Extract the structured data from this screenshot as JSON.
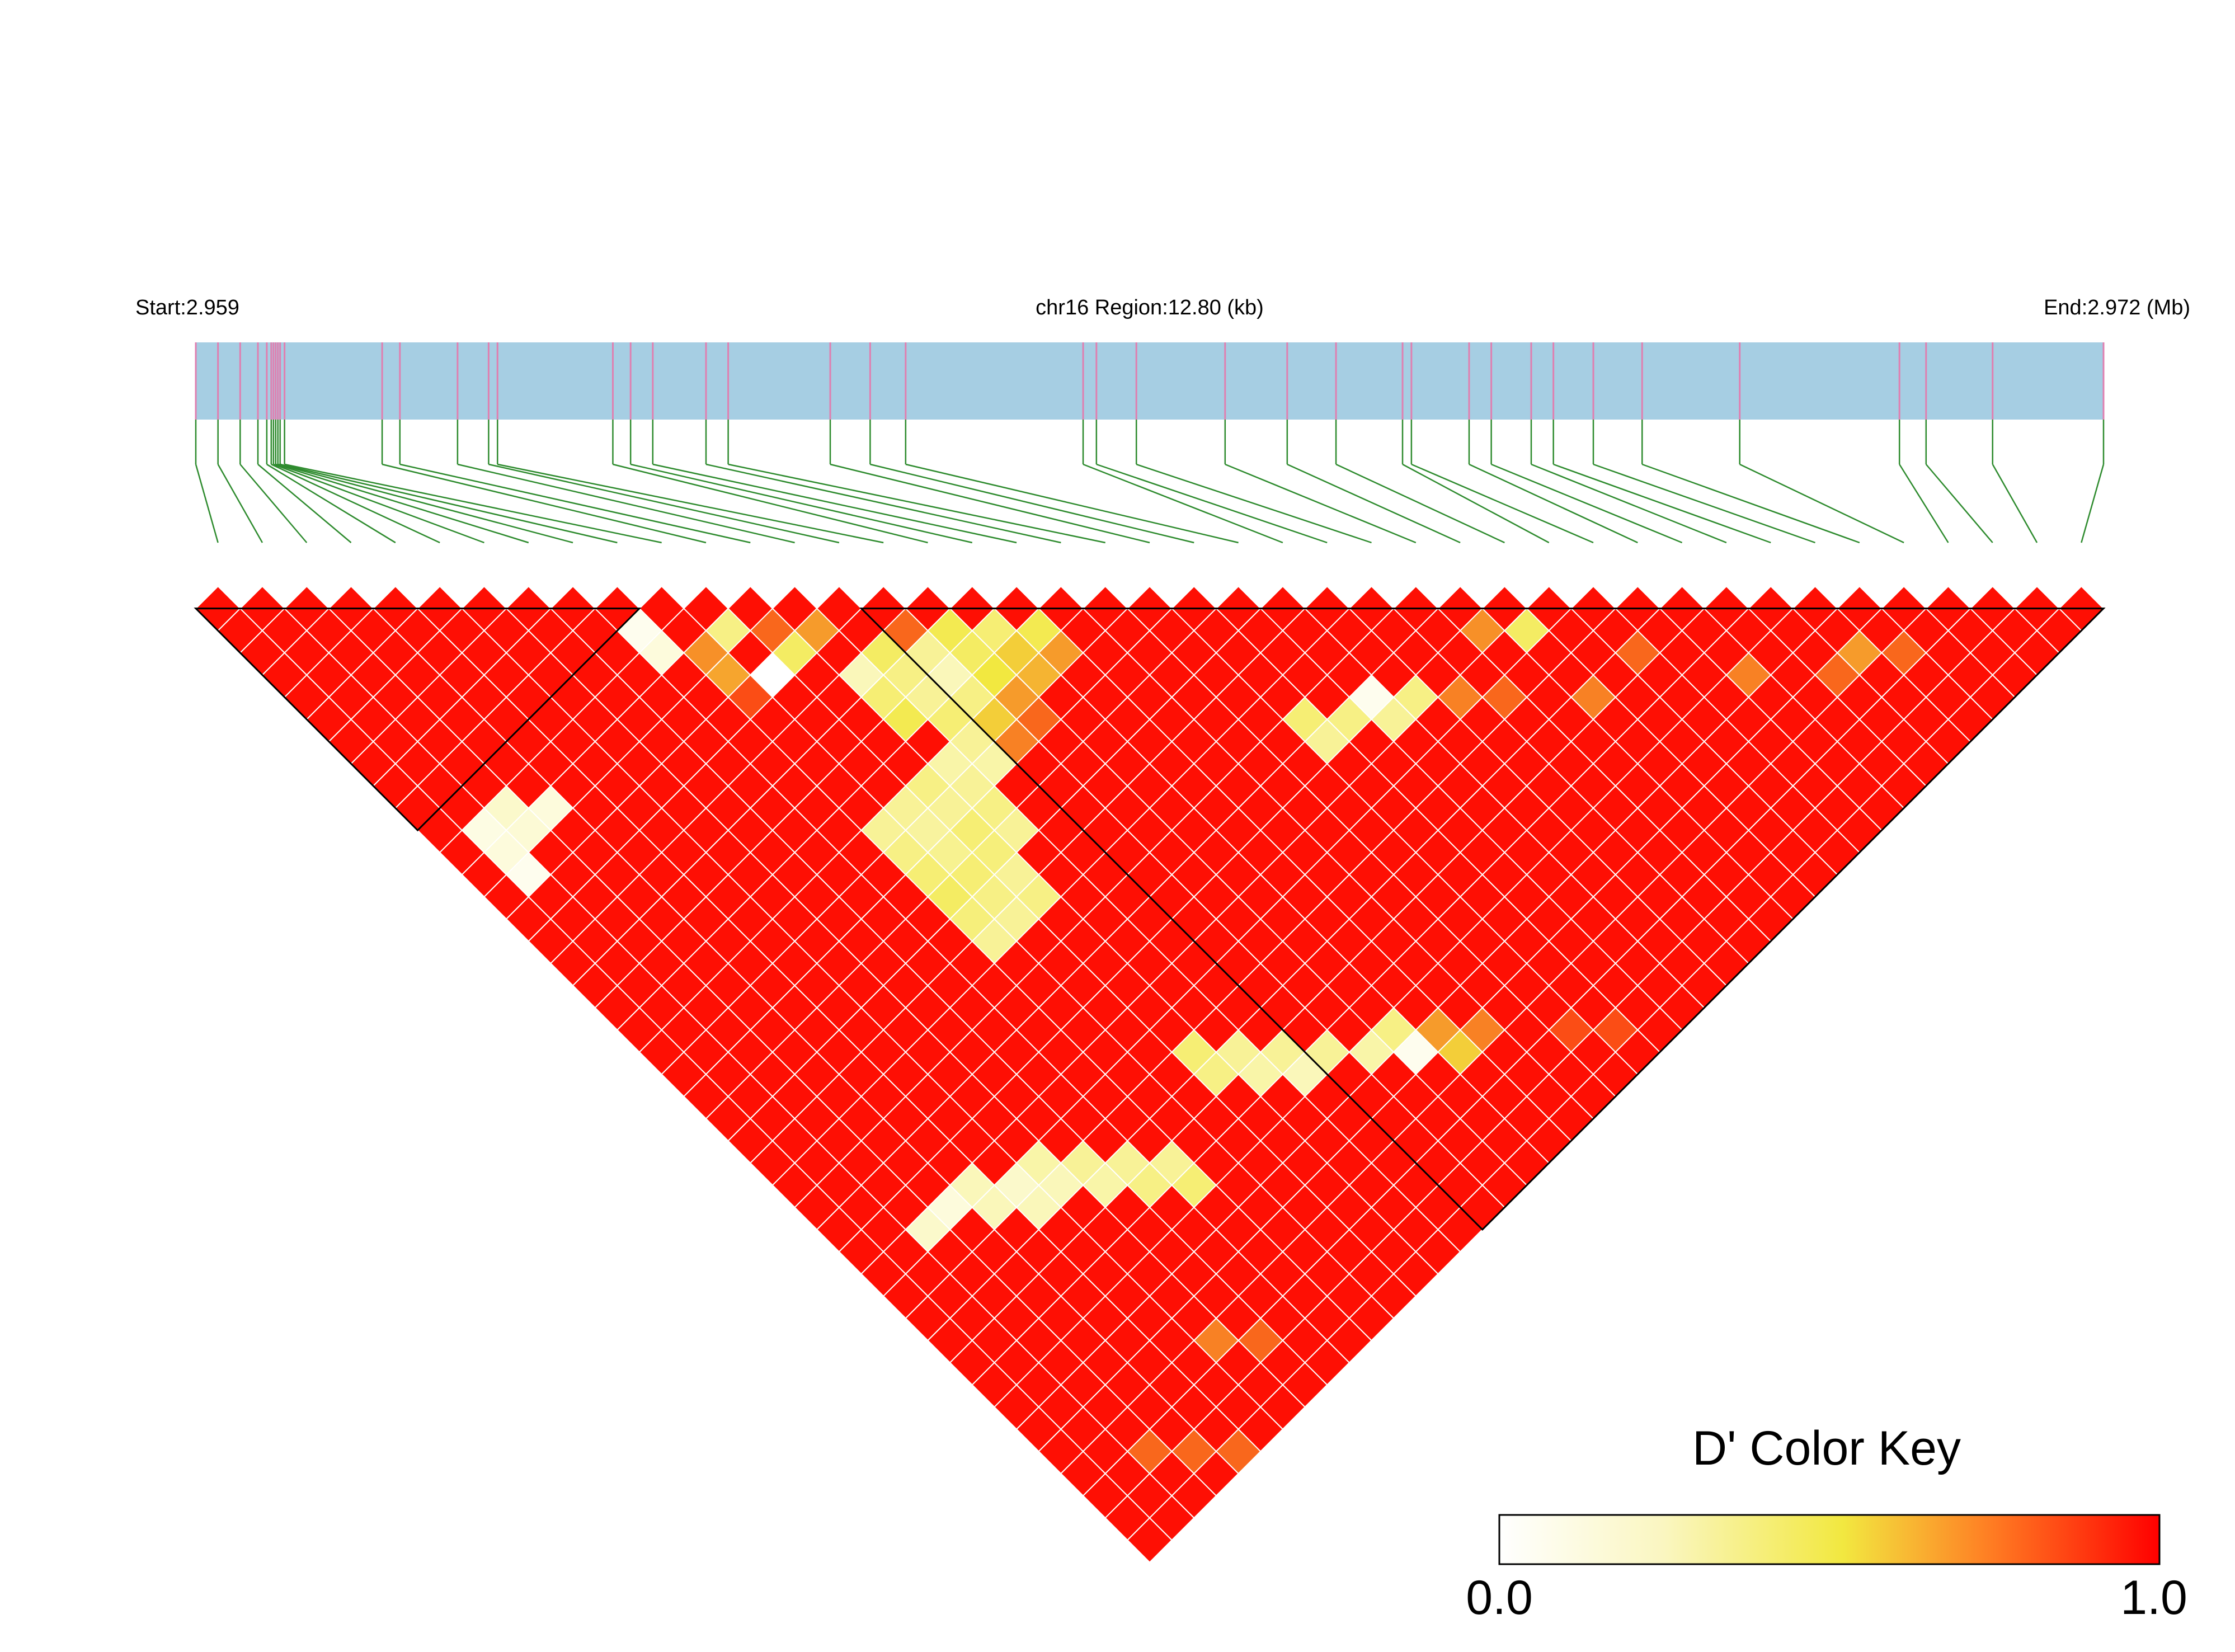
{
  "header": {
    "start_label": "Start:2.959",
    "region_label": "chr16 Region:12.80 (kb)",
    "end_label": "End:2.972 (Mb)"
  },
  "colors": {
    "track": "#a6cee3",
    "snp_tick": "#e07fb0",
    "connector": "#2e8b2e",
    "low": "#ffffff",
    "mid": "#f2e840",
    "high": "#ff0000",
    "block_border": "#000000"
  },
  "legend": {
    "title": "D' Color Key",
    "min_label": "0.0",
    "max_label": "1.0"
  },
  "chart_data": {
    "type": "heatmap",
    "chromosome": "chr16",
    "region_start_mb": 2.959,
    "region_end_mb": 2.972,
    "region_kb": 12.8,
    "n_snps": 43,
    "snp_track_positions": [
      0.0,
      0.5,
      1.0,
      1.4,
      1.6,
      1.7,
      1.75,
      1.8,
      1.85,
      1.9,
      2.0,
      4.2,
      4.6,
      5.9,
      6.6,
      6.8,
      9.4,
      9.8,
      10.3,
      11.5,
      12.0,
      14.3,
      15.2,
      16.0,
      20.0,
      20.3,
      21.2,
      23.2,
      24.6,
      25.7,
      27.2,
      27.4,
      28.7,
      29.2,
      30.1,
      30.6,
      31.5,
      32.6,
      34.8,
      38.4,
      39.0,
      40.5,
      43.0
    ],
    "blocks": [
      {
        "first_snp": 0,
        "last_snp": 9
      },
      {
        "first_snp": 15,
        "last_snp": 42
      }
    ],
    "value_scale": {
      "min": 0.0,
      "max": 1.0
    },
    "default_dprime": 0.97,
    "pair_values": [
      {
        "i": 1,
        "j": 11,
        "v": 0.08
      },
      {
        "i": 1,
        "j": 12,
        "v": 0.1
      },
      {
        "i": 1,
        "j": 13,
        "v": 0.05
      },
      {
        "i": 2,
        "j": 11,
        "v": 0.15
      },
      {
        "i": 2,
        "j": 12,
        "v": 0.12
      },
      {
        "i": 3,
        "j": 12,
        "v": 0.1
      },
      {
        "i": 9,
        "j": 10,
        "v": 0.05
      },
      {
        "i": 9,
        "j": 11,
        "v": 0.1
      },
      {
        "i": 10,
        "j": 12,
        "v": 0.72
      },
      {
        "i": 10,
        "j": 13,
        "v": 0.68
      },
      {
        "i": 10,
        "j": 14,
        "v": 0.85
      },
      {
        "i": 10,
        "j": 20,
        "v": 0.3
      },
      {
        "i": 10,
        "j": 21,
        "v": 0.35
      },
      {
        "i": 10,
        "j": 22,
        "v": 0.4
      },
      {
        "i": 10,
        "j": 23,
        "v": 0.45
      },
      {
        "i": 10,
        "j": 24,
        "v": 0.38
      },
      {
        "i": 10,
        "j": 25,
        "v": 0.3
      },
      {
        "i": 11,
        "j": 12,
        "v": 0.35
      },
      {
        "i": 11,
        "j": 14,
        "v": 0.0
      },
      {
        "i": 11,
        "j": 20,
        "v": 0.3
      },
      {
        "i": 11,
        "j": 21,
        "v": 0.28
      },
      {
        "i": 11,
        "j": 22,
        "v": 0.32
      },
      {
        "i": 11,
        "j": 23,
        "v": 0.4
      },
      {
        "i": 11,
        "j": 24,
        "v": 0.35
      },
      {
        "i": 11,
        "j": 25,
        "v": 0.3
      },
      {
        "i": 12,
        "j": 13,
        "v": 0.8
      },
      {
        "i": 12,
        "j": 14,
        "v": 0.45
      },
      {
        "i": 12,
        "j": 20,
        "v": 0.35
      },
      {
        "i": 12,
        "j": 21,
        "v": 0.3
      },
      {
        "i": 12,
        "j": 22,
        "v": 0.4
      },
      {
        "i": 12,
        "j": 23,
        "v": 0.38
      },
      {
        "i": 12,
        "j": 24,
        "v": 0.3
      },
      {
        "i": 12,
        "j": 25,
        "v": 0.35
      },
      {
        "i": 13,
        "j": 14,
        "v": 0.7
      },
      {
        "i": 13,
        "j": 16,
        "v": 0.2
      },
      {
        "i": 13,
        "j": 17,
        "v": 0.4
      },
      {
        "i": 13,
        "j": 18,
        "v": 0.5
      },
      {
        "i": 13,
        "j": 20,
        "v": 0.25
      },
      {
        "i": 13,
        "j": 21,
        "v": 0.3
      },
      {
        "i": 13,
        "j": 22,
        "v": 0.35
      },
      {
        "i": 13,
        "j": 23,
        "v": 0.3
      },
      {
        "i": 14,
        "j": 16,
        "v": 0.45
      },
      {
        "i": 14,
        "j": 17,
        "v": 0.35
      },
      {
        "i": 14,
        "j": 18,
        "v": 0.3
      },
      {
        "i": 14,
        "j": 19,
        "v": 0.4
      },
      {
        "i": 14,
        "j": 20,
        "v": 0.3
      },
      {
        "i": 14,
        "j": 21,
        "v": 0.25
      },
      {
        "i": 15,
        "j": 16,
        "v": 0.8
      },
      {
        "i": 15,
        "j": 17,
        "v": 0.3
      },
      {
        "i": 15,
        "j": 18,
        "v": 0.2
      },
      {
        "i": 15,
        "j": 19,
        "v": 0.35
      },
      {
        "i": 15,
        "j": 20,
        "v": 0.6
      },
      {
        "i": 15,
        "j": 21,
        "v": 0.75
      },
      {
        "i": 16,
        "j": 17,
        "v": 0.5
      },
      {
        "i": 16,
        "j": 18,
        "v": 0.45
      },
      {
        "i": 16,
        "j": 19,
        "v": 0.55
      },
      {
        "i": 16,
        "j": 20,
        "v": 0.7
      },
      {
        "i": 16,
        "j": 21,
        "v": 0.8
      },
      {
        "i": 17,
        "j": 18,
        "v": 0.4
      },
      {
        "i": 17,
        "j": 19,
        "v": 0.6
      },
      {
        "i": 17,
        "j": 20,
        "v": 0.65
      },
      {
        "i": 18,
        "j": 19,
        "v": 0.5
      },
      {
        "i": 18,
        "j": 20,
        "v": 0.7
      },
      {
        "i": 2,
        "j": 30,
        "v": 0.15
      },
      {
        "i": 3,
        "j": 30,
        "v": 0.1
      },
      {
        "i": 4,
        "j": 30,
        "v": 0.2
      },
      {
        "i": 4,
        "j": 31,
        "v": 0.2
      },
      {
        "i": 5,
        "j": 31,
        "v": 0.15
      },
      {
        "i": 5,
        "j": 32,
        "v": 0.2
      },
      {
        "i": 6,
        "j": 31,
        "v": 0.25
      },
      {
        "i": 6,
        "j": 32,
        "v": 0.2
      },
      {
        "i": 7,
        "j": 32,
        "v": 0.3
      },
      {
        "i": 7,
        "j": 33,
        "v": 0.25
      },
      {
        "i": 8,
        "j": 33,
        "v": 0.3
      },
      {
        "i": 8,
        "j": 34,
        "v": 0.35
      },
      {
        "i": 9,
        "j": 34,
        "v": 0.3
      },
      {
        "i": 9,
        "j": 35,
        "v": 0.4
      },
      {
        "i": 2,
        "j": 40,
        "v": 0.8
      },
      {
        "i": 3,
        "j": 41,
        "v": 0.8
      },
      {
        "i": 4,
        "j": 42,
        "v": 0.8
      },
      {
        "i": 6,
        "j": 39,
        "v": 0.75
      },
      {
        "i": 7,
        "j": 40,
        "v": 0.8
      },
      {
        "i": 12,
        "j": 32,
        "v": 0.4
      },
      {
        "i": 12,
        "j": 33,
        "v": 0.35
      },
      {
        "i": 13,
        "j": 33,
        "v": 0.3
      },
      {
        "i": 13,
        "j": 34,
        "v": 0.25
      },
      {
        "i": 14,
        "j": 34,
        "v": 0.3
      },
      {
        "i": 14,
        "j": 35,
        "v": 0.2
      },
      {
        "i": 15,
        "j": 35,
        "v": 0.3
      },
      {
        "i": 16,
        "j": 36,
        "v": 0.25
      },
      {
        "i": 17,
        "j": 36,
        "v": 0.35
      },
      {
        "i": 17,
        "j": 37,
        "v": 0.05
      },
      {
        "i": 18,
        "j": 37,
        "v": 0.7
      },
      {
        "i": 18,
        "j": 38,
        "v": 0.6
      },
      {
        "i": 19,
        "j": 38,
        "v": 0.75
      },
      {
        "i": 22,
        "j": 27,
        "v": 0.4
      },
      {
        "i": 22,
        "j": 28,
        "v": 0.3
      },
      {
        "i": 23,
        "j": 28,
        "v": 0.35
      },
      {
        "i": 24,
        "j": 28,
        "v": 0.05
      },
      {
        "i": 24,
        "j": 29,
        "v": 0.3
      },
      {
        "i": 25,
        "j": 29,
        "v": 0.35
      },
      {
        "i": 26,
        "j": 30,
        "v": 0.75
      },
      {
        "i": 27,
        "j": 31,
        "v": 0.8
      },
      {
        "i": 28,
        "j": 29,
        "v": 0.72
      },
      {
        "i": 29,
        "j": 30,
        "v": 0.45
      },
      {
        "i": 29,
        "j": 33,
        "v": 0.75
      },
      {
        "i": 31,
        "j": 33,
        "v": 0.8
      },
      {
        "i": 33,
        "j": 36,
        "v": 0.75
      },
      {
        "i": 35,
        "j": 38,
        "v": 0.8
      },
      {
        "i": 36,
        "j": 38,
        "v": 0.7
      },
      {
        "i": 37,
        "j": 39,
        "v": 0.8
      },
      {
        "i": 21,
        "j": 40,
        "v": 0.85
      },
      {
        "i": 22,
        "j": 41,
        "v": 0.85
      }
    ]
  }
}
